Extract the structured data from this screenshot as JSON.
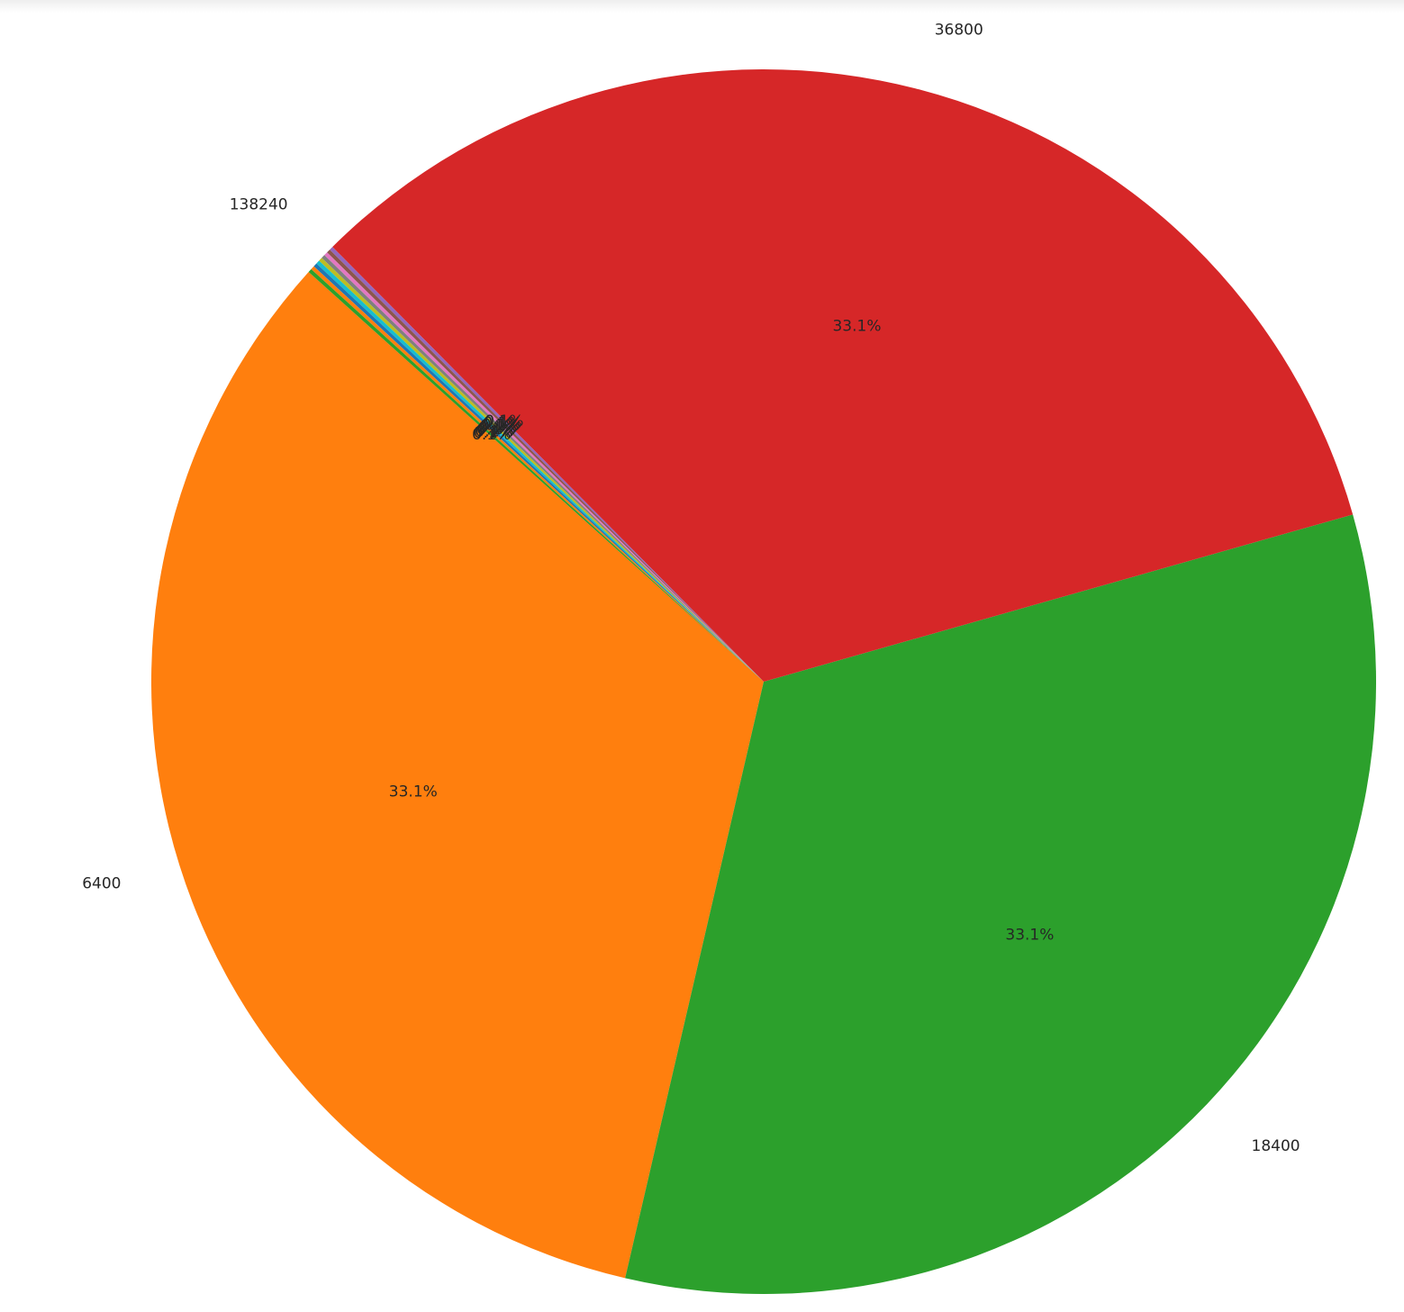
{
  "chart_data": {
    "type": "pie",
    "title": "",
    "start_angle_deg": 138,
    "direction": "counterclockwise",
    "autopct_format": "%.1f%%",
    "slices": [
      {
        "label": "6400",
        "value": 33.1,
        "pct_label": "33.1%",
        "color": "#ff7f0e"
      },
      {
        "label": "18400",
        "value": 33.1,
        "pct_label": "33.1%",
        "color": "#2ca02c"
      },
      {
        "label": "36800",
        "value": 33.1,
        "pct_label": "33.1%",
        "color": "#d62728"
      },
      {
        "label": "138240",
        "value": 0.1,
        "pct_label": "0.1%",
        "color": "#9467bd"
      },
      {
        "label": "",
        "value": 0.1,
        "pct_label": "0.1%",
        "color": "#8c564b"
      },
      {
        "label": "",
        "value": 0.1,
        "pct_label": "0.1%",
        "color": "#e377c2"
      },
      {
        "label": "",
        "value": 0.1,
        "pct_label": "0.1%",
        "color": "#7f7f7f"
      },
      {
        "label": "",
        "value": 0.1,
        "pct_label": "0.1%",
        "color": "#bcbd22"
      },
      {
        "label": "",
        "value": 0.1,
        "pct_label": "0.1%",
        "color": "#17becf"
      },
      {
        "label": "",
        "value": 0.1,
        "pct_label": "0.1%",
        "color": "#1f77b4"
      },
      {
        "label": "",
        "value": 0.1,
        "pct_label": "0.1%",
        "color": "#ff7f0e"
      },
      {
        "label": "",
        "value": 0.1,
        "pct_label": "0.1%",
        "color": "#2ca02c"
      }
    ]
  }
}
